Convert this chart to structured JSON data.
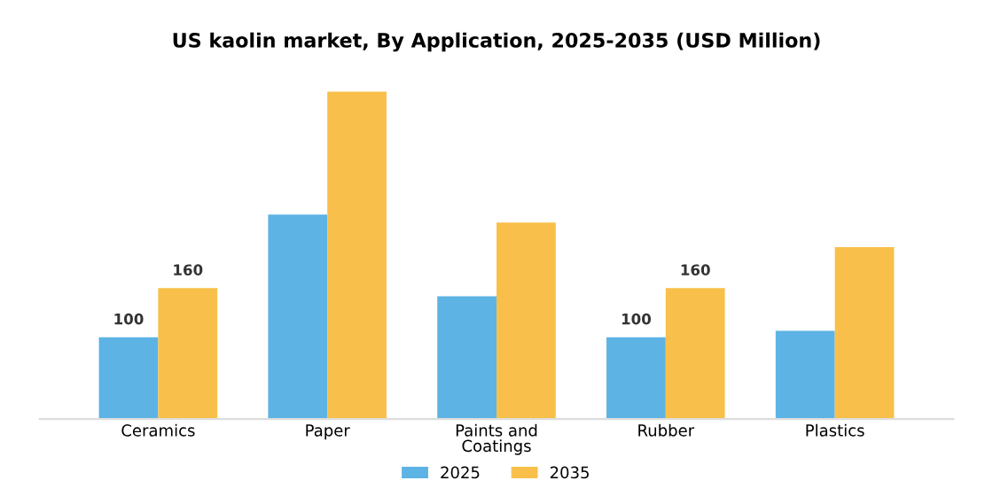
{
  "chart_data": {
    "type": "bar",
    "title": "US kaolin market, By Application, 2025-2035 (USD Million)",
    "categories": [
      "Ceramics",
      "Paper",
      "Paints and\nCoatings",
      "Rubber",
      "Plastics"
    ],
    "series": [
      {
        "name": "2025",
        "color": "#5db3e4",
        "values": [
          100,
          250,
          150,
          100,
          108
        ],
        "value_labels": [
          "100",
          null,
          null,
          "100",
          null
        ]
      },
      {
        "name": "2035",
        "color": "#f8c04a",
        "values": [
          160,
          400,
          240,
          160,
          210
        ],
        "value_labels": [
          "160",
          null,
          null,
          "160",
          null
        ]
      }
    ],
    "legend": "bottom",
    "grid": false
  }
}
